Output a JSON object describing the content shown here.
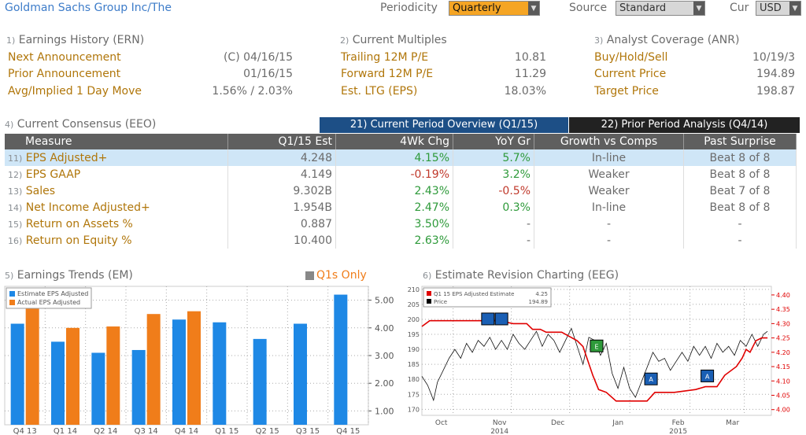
{
  "header": {
    "company": "Goldman Sachs Group Inc/The",
    "periodicity_label": "Periodicity",
    "periodicity_value": "Quarterly",
    "source_label": "Source",
    "source_value": "Standard",
    "cur_label": "Cur",
    "cur_value": "USD"
  },
  "earnings_history": {
    "num": "1)",
    "title": "Earnings History (ERN)",
    "rows": [
      {
        "label": "Next Announcement",
        "value": "(C)  04/16/15"
      },
      {
        "label": "Prior Announcement",
        "value": "01/16/15"
      },
      {
        "label": "Avg/Implied 1 Day Move",
        "value": "1.56% / 2.03%"
      }
    ]
  },
  "current_multiples": {
    "num": "2)",
    "title": "Current Multiples",
    "rows": [
      {
        "label": "Trailing 12M P/E",
        "value": "10.81"
      },
      {
        "label": "Forward 12M P/E",
        "value": "11.29"
      },
      {
        "label": "Est. LTG (EPS)",
        "value": "18.03%"
      }
    ]
  },
  "analyst_coverage": {
    "num": "3)",
    "title": "Analyst Coverage (ANR)",
    "rows": [
      {
        "label": "Buy/Hold/Sell",
        "value": "10/19/3"
      },
      {
        "label": "Current Price",
        "value": "194.89"
      },
      {
        "label": "Target Price",
        "value": "198.87"
      }
    ]
  },
  "consensus": {
    "num": "4)",
    "title": "Current Consensus (EEO)",
    "tab1": "21) Current Period Overview (Q1/15)",
    "tab2": "22) Prior Period Analysis (Q4/14)",
    "columns": [
      "Measure",
      "Q1/15 Est",
      "4Wk Chg",
      "YoY Gr",
      "Growth vs Comps",
      "Past Surprise"
    ],
    "rows": [
      {
        "num": "11)",
        "measure": "EPS Adjusted+",
        "est": "4.248",
        "chg": "4.15%",
        "chg_dir": "pos",
        "yoy": "5.7%",
        "yoy_dir": "pos",
        "growth": "In-line",
        "surprise": "Beat 8 of 8"
      },
      {
        "num": "12)",
        "measure": "EPS GAAP",
        "est": "4.149",
        "chg": "-0.19%",
        "chg_dir": "neg",
        "yoy": "3.2%",
        "yoy_dir": "pos",
        "growth": "Weaker",
        "surprise": "Beat 8 of 8"
      },
      {
        "num": "13)",
        "measure": "Sales",
        "est": "9.302B",
        "chg": "2.43%",
        "chg_dir": "pos",
        "yoy": "-0.5%",
        "yoy_dir": "neg",
        "growth": "Weaker",
        "surprise": "Beat 7 of 8"
      },
      {
        "num": "14)",
        "measure": "Net Income Adjusted+",
        "est": "1.954B",
        "chg": "2.47%",
        "chg_dir": "pos",
        "yoy": "0.3%",
        "yoy_dir": "pos",
        "growth": "In-line",
        "surprise": "Beat 8 of 8"
      },
      {
        "num": "15)",
        "measure": "Return on Assets %",
        "est": "0.887",
        "chg": "3.50%",
        "chg_dir": "pos",
        "yoy": "-",
        "yoy_dir": "none",
        "growth": "-",
        "surprise": "-"
      },
      {
        "num": "16)",
        "measure": "Return on Equity %",
        "est": "10.400",
        "chg": "2.63%",
        "chg_dir": "pos",
        "yoy": "-",
        "yoy_dir": "none",
        "growth": "-",
        "surprise": "-"
      }
    ]
  },
  "earnings_trends": {
    "num": "5)",
    "title": "Earnings Trends (EM)",
    "q1s_only": "Q1s Only",
    "chart_data": {
      "type": "bar",
      "categories": [
        "Q4 13",
        "Q1 14",
        "Q2 14",
        "Q3 14",
        "Q4 14",
        "Q1 15",
        "Q2 15",
        "Q3 15",
        "Q4 15"
      ],
      "series": [
        {
          "name": "Estimate EPS Adjusted",
          "color": "#1e88e5",
          "values": [
            4.15,
            3.5,
            3.1,
            3.2,
            4.3,
            4.2,
            3.6,
            4.15,
            5.2
          ]
        },
        {
          "name": "Actual EPS Adjusted",
          "color": "#f07d1a",
          "values": [
            4.7,
            4.0,
            4.05,
            4.5,
            4.6,
            null,
            null,
            null,
            null
          ]
        }
      ],
      "ylim": [
        0.5,
        5.5
      ],
      "yticks": [
        "1.00",
        "2.00",
        "3.00",
        "4.00",
        "5.00"
      ],
      "ytick_values": [
        1,
        2,
        3,
        4,
        5
      ]
    }
  },
  "estimate_revision": {
    "num": "6)",
    "title": "Estimate Revision Charting (EEG)",
    "chart_data": {
      "type": "line",
      "legend": [
        {
          "name": "Q1 15 EPS Adjusted Estimate",
          "value": "4.25",
          "color": "#e00000"
        },
        {
          "name": "Price",
          "value": "194.89",
          "color": "#000000"
        }
      ],
      "left_ticks": [
        "170",
        "175",
        "180",
        "185",
        "190",
        "195",
        "200",
        "205",
        "210"
      ],
      "left_tick_values": [
        170,
        175,
        180,
        185,
        190,
        195,
        200,
        205,
        210
      ],
      "right_ticks": [
        "4.00",
        "4.05",
        "4.10",
        "4.15",
        "4.20",
        "4.25",
        "4.30",
        "4.35",
        "4.40"
      ],
      "right_tick_values": [
        4.0,
        4.05,
        4.1,
        4.15,
        4.2,
        4.25,
        4.3,
        4.35,
        4.4
      ],
      "left_range": [
        168,
        211
      ],
      "right_range": [
        3.98,
        4.43
      ],
      "month_labels": [
        "Oct",
        "Nov",
        "Dec",
        "Jan",
        "Feb",
        "Mar"
      ],
      "year_labels": [
        "2014",
        "2015"
      ],
      "x_range": [
        0,
        180
      ],
      "month_positions": [
        10,
        40,
        70,
        101,
        132,
        160
      ],
      "year_positions": [
        40,
        132
      ],
      "price": [
        [
          0,
          181
        ],
        [
          3,
          178
        ],
        [
          6,
          173
        ],
        [
          8,
          179
        ],
        [
          11,
          183
        ],
        [
          14,
          187
        ],
        [
          17,
          190
        ],
        [
          20,
          187
        ],
        [
          23,
          192
        ],
        [
          26,
          189
        ],
        [
          29,
          193
        ],
        [
          32,
          191
        ],
        [
          35,
          194
        ],
        [
          38,
          190
        ],
        [
          41,
          193
        ],
        [
          44,
          190
        ],
        [
          47,
          195
        ],
        [
          50,
          192
        ],
        [
          53,
          190
        ],
        [
          56,
          193
        ],
        [
          59,
          196
        ],
        [
          62,
          191
        ],
        [
          65,
          195
        ],
        [
          68,
          193
        ],
        [
          71,
          189
        ],
        [
          74,
          193
        ],
        [
          77,
          197
        ],
        [
          80,
          191
        ],
        [
          83,
          185
        ],
        [
          86,
          194
        ],
        [
          89,
          193
        ],
        [
          92,
          188
        ],
        [
          95,
          192
        ],
        [
          98,
          182
        ],
        [
          101,
          177
        ],
        [
          104,
          184
        ],
        [
          107,
          177
        ],
        [
          110,
          174
        ],
        [
          113,
          179
        ],
        [
          116,
          184
        ],
        [
          119,
          189
        ],
        [
          122,
          186
        ],
        [
          125,
          187
        ],
        [
          128,
          183
        ],
        [
          131,
          186
        ],
        [
          134,
          189
        ],
        [
          137,
          186
        ],
        [
          140,
          191
        ],
        [
          143,
          188
        ],
        [
          146,
          191
        ],
        [
          149,
          187
        ],
        [
          152,
          192
        ],
        [
          155,
          189
        ],
        [
          158,
          191
        ],
        [
          161,
          188
        ],
        [
          164,
          193
        ],
        [
          167,
          191
        ],
        [
          170,
          195
        ],
        [
          173,
          191
        ],
        [
          176,
          195
        ],
        [
          178,
          196
        ]
      ],
      "estimate": [
        [
          0,
          4.29
        ],
        [
          4,
          4.31
        ],
        [
          8,
          4.31
        ],
        [
          40,
          4.31
        ],
        [
          47,
          4.3
        ],
        [
          54,
          4.3
        ],
        [
          57,
          4.28
        ],
        [
          61,
          4.28
        ],
        [
          64,
          4.27
        ],
        [
          68,
          4.27
        ],
        [
          72,
          4.27
        ],
        [
          80,
          4.24
        ],
        [
          83,
          4.22
        ],
        [
          88,
          4.12
        ],
        [
          91,
          4.07
        ],
        [
          95,
          4.06
        ],
        [
          100,
          4.03
        ],
        [
          116,
          4.03
        ],
        [
          120,
          4.06
        ],
        [
          130,
          4.06
        ],
        [
          141,
          4.07
        ],
        [
          146,
          4.08
        ],
        [
          152,
          4.08
        ],
        [
          156,
          4.12
        ],
        [
          162,
          4.15
        ],
        [
          165,
          4.18
        ],
        [
          167,
          4.21
        ],
        [
          169,
          4.2
        ],
        [
          172,
          4.24
        ],
        [
          175,
          4.25
        ],
        [
          178,
          4.25
        ]
      ],
      "markers": [
        {
          "label": "E",
          "color": "#2e9a3a",
          "x": 90,
          "price_level": 191
        },
        {
          "label": "A",
          "color": "#1a5fb4",
          "x": 118,
          "price_level": 180
        },
        {
          "label": "A",
          "color": "#1a5fb4",
          "x": 147,
          "price_level": 181
        }
      ],
      "dual_markers": {
        "x1": 34,
        "x2": 41,
        "price_level": 200
      }
    }
  }
}
